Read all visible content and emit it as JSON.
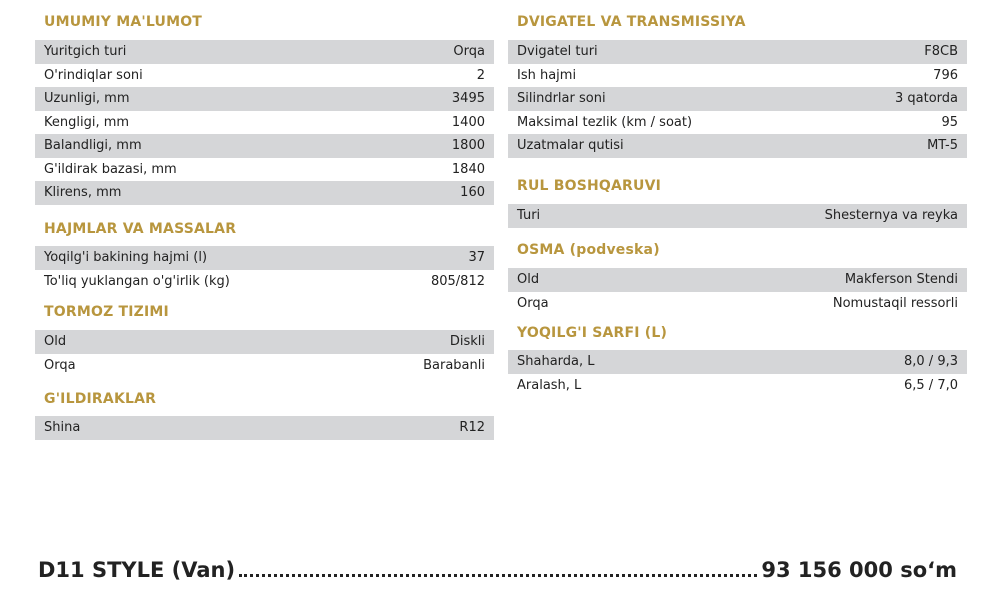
{
  "left": [
    {
      "title": "UMUMIY MA'LUMOT",
      "rows": [
        [
          "Yuritgich turi",
          "Orqa"
        ],
        [
          "O'rindiqlar soni",
          "2"
        ],
        [
          "Uzunligi, mm",
          "3495"
        ],
        [
          "Kengligi, mm",
          "1400"
        ],
        [
          "Balandligi, mm",
          "1800"
        ],
        [
          "G'ildirak bazasi, mm",
          "1840"
        ],
        [
          "Klirens, mm",
          "160"
        ]
      ]
    },
    {
      "title": "HAJMLAR VA MASSALAR",
      "rows": [
        [
          "Yoqilg'i bakining hajmi (l)",
          "37"
        ],
        [
          "To'liq yuklangan o'g'irlik (kg)",
          "805/812"
        ]
      ]
    },
    {
      "title": "TORMOZ TIZIMI",
      "rows": [
        [
          "Old",
          "Diskli"
        ],
        [
          "Orqa",
          "Barabanli"
        ]
      ]
    },
    {
      "title": "G'ILDIRAKLAR",
      "rows": [
        [
          "Shina",
          "R12"
        ]
      ]
    }
  ],
  "right": [
    {
      "title": "DVIGATEL VA TRANSMISSIYA",
      "rows": [
        [
          "Dvigatel turi",
          "F8CB"
        ],
        [
          "Ish hajmi",
          "796"
        ],
        [
          "Silindrlar soni",
          "3 qatorda"
        ],
        [
          "Maksimal tezlik (km / soat)",
          "95"
        ],
        [
          "Uzatmalar qutisi",
          "MT-5"
        ]
      ]
    },
    {
      "title": "RUL BOSHQARUVI",
      "rows": [
        [
          "Turi",
          "Shesternya va reyka"
        ]
      ]
    },
    {
      "title": "OSMA (podveska)",
      "rows": [
        [
          "Old",
          "Makferson Stendi"
        ],
        [
          "Orqa",
          "Nomustaqil ressorli"
        ]
      ]
    },
    {
      "title": "YOQILG'I SARFI (L)",
      "rows": [
        [
          "Shaharda, L",
          "8,0 / 9,3"
        ],
        [
          "Aralash, L",
          "6,5 / 7,0"
        ]
      ]
    }
  ],
  "price": {
    "model": "D11 STYLE (Van)",
    "price": "93 156 000 so‘m"
  }
}
